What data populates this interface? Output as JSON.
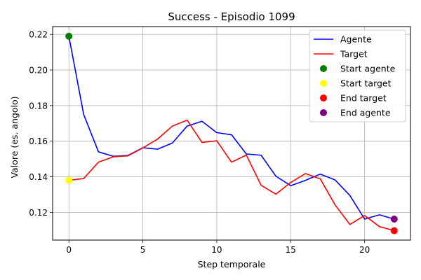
{
  "chart_data": {
    "type": "line",
    "title": "Success - Episodio 1099",
    "xlabel": "Step temporale",
    "ylabel": "Valore (es. angolo)",
    "xlim": [
      -1.1,
      23.1
    ],
    "ylim": [
      0.1044,
      0.2244
    ],
    "xticks": [
      0,
      5,
      10,
      15,
      20
    ],
    "yticks": [
      0.12,
      0.14,
      0.16,
      0.18,
      0.2,
      0.22
    ],
    "ytick_labels": [
      "0.12",
      "0.14",
      "0.16",
      "0.18",
      "0.20",
      "0.22"
    ],
    "grid": true,
    "legend_position": "top-right",
    "series": [
      {
        "name": "Agente",
        "color": "#0000ff",
        "x": [
          0,
          1,
          2,
          3,
          4,
          5,
          6,
          7,
          8,
          9,
          10,
          11,
          12,
          13,
          14,
          15,
          16,
          17,
          18,
          19,
          20,
          21,
          22
        ],
        "values": [
          0.219,
          0.175,
          0.154,
          0.1515,
          0.152,
          0.1563,
          0.1555,
          0.159,
          0.1685,
          0.1712,
          0.1648,
          0.1636,
          0.1528,
          0.1521,
          0.1403,
          0.135,
          0.138,
          0.1415,
          0.1382,
          0.1295,
          0.1162,
          0.1186,
          0.1162
        ]
      },
      {
        "name": "Target",
        "color": "#ff0000",
        "x": [
          0,
          1,
          2,
          3,
          4,
          5,
          6,
          7,
          8,
          9,
          10,
          11,
          12,
          13,
          14,
          15,
          16,
          17,
          18,
          19,
          20,
          21,
          22
        ],
        "values": [
          0.138,
          0.139,
          0.1482,
          0.1512,
          0.1518,
          0.1562,
          0.1612,
          0.1685,
          0.1718,
          0.1593,
          0.1602,
          0.1482,
          0.1522,
          0.1352,
          0.1302,
          0.1368,
          0.1418,
          0.1388,
          0.1242,
          0.1132,
          0.1182,
          0.112,
          0.1097
        ]
      }
    ],
    "markers": [
      {
        "name": "Start agente",
        "color": "#008000",
        "x": 0,
        "y": 0.219
      },
      {
        "name": "Start target",
        "color": "#ffff00",
        "x": 0,
        "y": 0.138
      },
      {
        "name": "End target",
        "color": "#ff0000",
        "x": 22,
        "y": 0.1097
      },
      {
        "name": "End agente",
        "color": "#800080",
        "x": 22,
        "y": 0.1162
      }
    ]
  }
}
